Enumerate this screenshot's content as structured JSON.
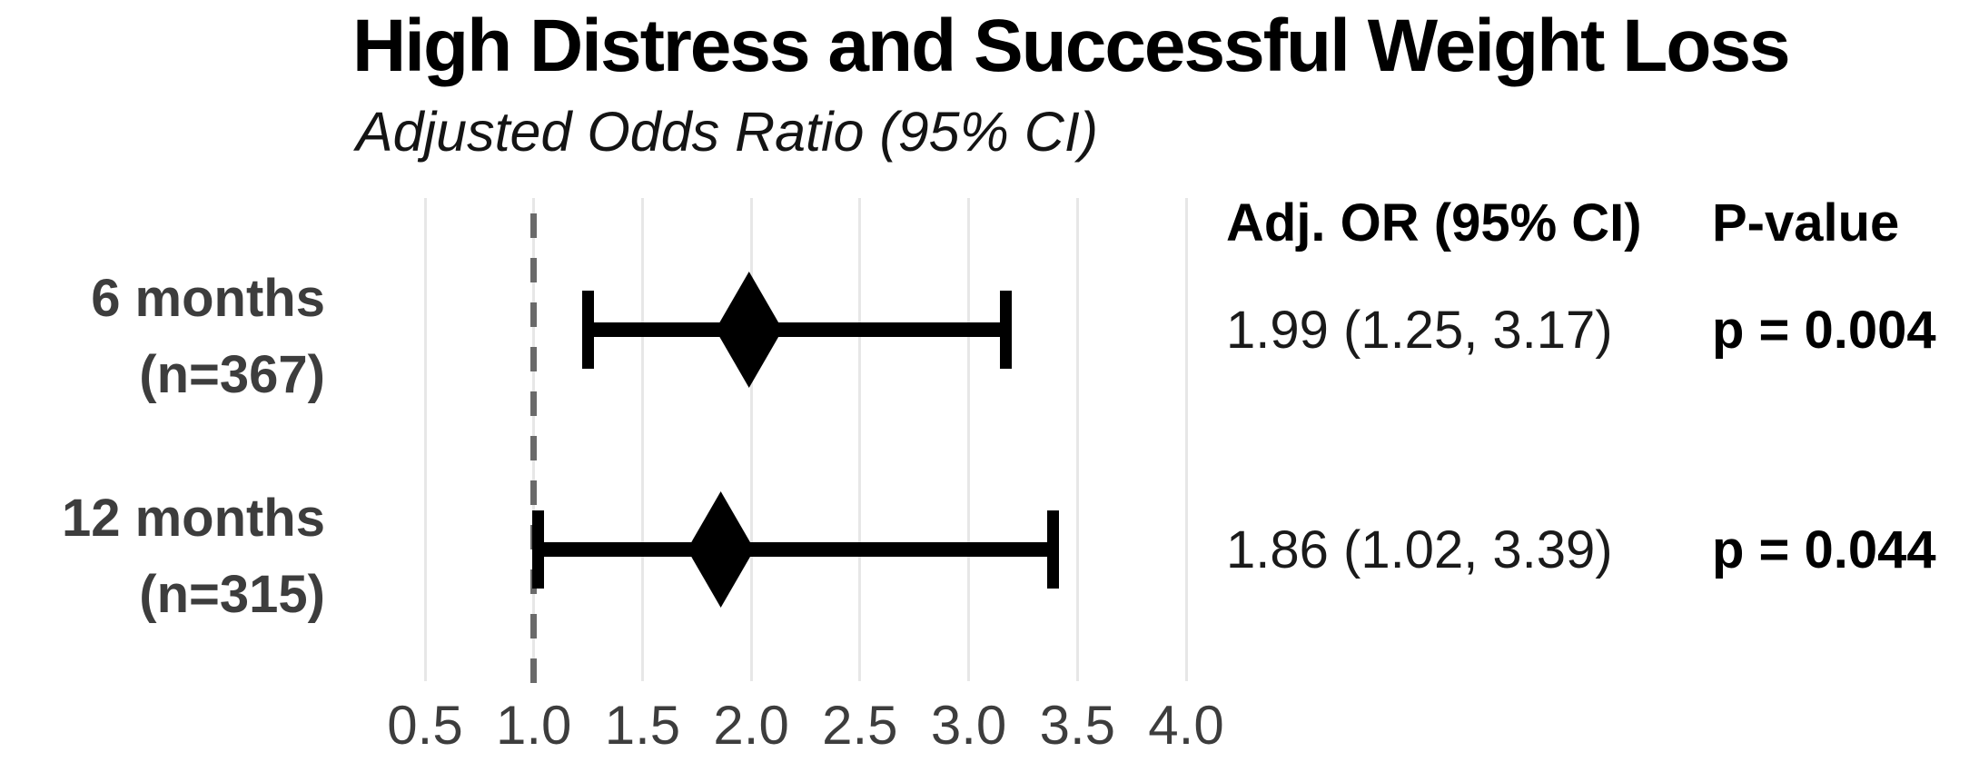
{
  "title": "High Distress and Successful Weight Loss",
  "subtitle": "Adjusted Odds Ratio (95% CI)",
  "table": {
    "or_header": "Adj. OR (95% CI)",
    "p_header": "P-value"
  },
  "chart_data": {
    "type": "forest",
    "title": "High Distress and Successful Weight Loss",
    "subtitle": "Adjusted Odds Ratio (95% CI)",
    "xlim": [
      0.5,
      4.0
    ],
    "x_ticks": [
      0.5,
      1.0,
      1.5,
      2.0,
      2.5,
      3.0,
      3.5,
      4.0
    ],
    "reference_line": 1.0,
    "grid": "vertical-only",
    "legend": "none",
    "rows": [
      {
        "label_line1": "6 months",
        "label_line2": "(n=367)",
        "n": 367,
        "or": 1.99,
        "ci_low": 1.25,
        "ci_high": 3.17,
        "or_text": "1.99 (1.25, 3.17)",
        "p_value": 0.004,
        "p_text": "p = 0.004"
      },
      {
        "label_line1": "12 months",
        "label_line2": "(n=315)",
        "n": 315,
        "or": 1.86,
        "ci_low": 1.02,
        "ci_high": 3.39,
        "or_text": "1.86 (1.02, 3.39)",
        "p_value": 0.044,
        "p_text": "p = 0.044"
      }
    ],
    "colors": {
      "marker": "#000000",
      "gridline": "#e7e7e7",
      "reference_dash": "#6a6a6a",
      "label_gray": "#3d3d3d"
    }
  }
}
